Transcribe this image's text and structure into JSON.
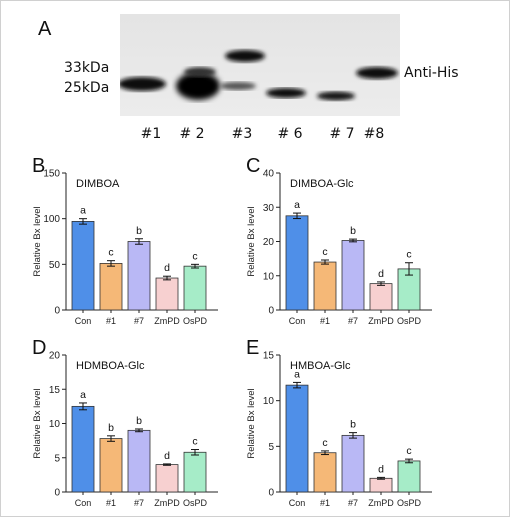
{
  "blot": {
    "panel": "A",
    "markers": [
      "33kDa",
      "25kDa"
    ],
    "antibody": "Anti-His",
    "lanes": [
      "#1",
      "# 2",
      "#3",
      "# 6",
      "# 7",
      "#8"
    ]
  },
  "colors": [
    "#4f8fe8",
    "#f5b877",
    "#b9b8f5",
    "#f7d0d0",
    "#a6ecc8"
  ],
  "chart_data": [
    {
      "panel": "B",
      "type": "bar",
      "title": "DIMBOA",
      "categories": [
        "Con",
        "#1",
        "#7",
        "ZmPD",
        "OsPD"
      ],
      "values": [
        97,
        51,
        75,
        35,
        48
      ],
      "errors": [
        3,
        3,
        3,
        2,
        2
      ],
      "letters": [
        "a",
        "c",
        "b",
        "d",
        "c"
      ],
      "ylabel": "Relative Bx level",
      "ylim": [
        0,
        150
      ],
      "yticks": [
        0,
        50,
        100,
        150
      ]
    },
    {
      "panel": "C",
      "type": "bar",
      "title": "DIMBOA-Glc",
      "categories": [
        "Con",
        "#1",
        "#7",
        "ZmPD",
        "OsPD"
      ],
      "values": [
        27.5,
        14,
        20.3,
        7.7,
        12
      ],
      "errors": [
        0.8,
        0.6,
        0.4,
        0.5,
        1.8
      ],
      "letters": [
        "a",
        "c",
        "b",
        "d",
        "c"
      ],
      "ylabel": "Relative Bx level",
      "ylim": [
        0,
        40
      ],
      "yticks": [
        0,
        10,
        20,
        30,
        40
      ]
    },
    {
      "panel": "D",
      "type": "bar",
      "title": "HDMBOA-Glc",
      "categories": [
        "Con",
        "#1",
        "#7",
        "ZmPD",
        "OsPD"
      ],
      "values": [
        12.5,
        7.8,
        9,
        4,
        5.8
      ],
      "errors": [
        0.5,
        0.4,
        0.2,
        0.1,
        0.4
      ],
      "letters": [
        "a",
        "b",
        "b",
        "d",
        "c"
      ],
      "ylabel": "Relative Bx level",
      "ylim": [
        0,
        20
      ],
      "yticks": [
        0,
        5,
        10,
        15,
        20
      ]
    },
    {
      "panel": "E",
      "type": "bar",
      "title": "HMBOA-Glc",
      "categories": [
        "Con",
        "#1",
        "#7",
        "ZmPD",
        "OsPD"
      ],
      "values": [
        11.7,
        4.3,
        6.2,
        1.5,
        3.4
      ],
      "errors": [
        0.3,
        0.2,
        0.3,
        0.1,
        0.2
      ],
      "letters": [
        "a",
        "c",
        "b",
        "d",
        "c"
      ],
      "ylabel": "Relative Bx level",
      "ylim": [
        0,
        15
      ],
      "yticks": [
        0,
        5,
        10,
        15
      ]
    }
  ]
}
